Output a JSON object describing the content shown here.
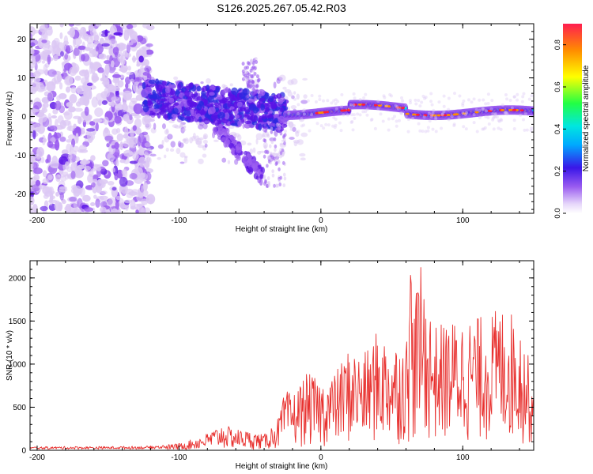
{
  "title": "S126.2025.267.05.42.R03",
  "colors": {
    "snr_line": "#e8312f",
    "spectrogram_palette": [
      "#ffffff",
      "#dcc8f4",
      "#9a5cf0",
      "#5a12e6",
      "#2a2ae0",
      "#00b8ff",
      "#00e8e0",
      "#22ff22",
      "#ffff00",
      "#ff8c00",
      "#ff1e3c"
    ]
  },
  "chart_data": [
    {
      "type": "heatmap",
      "name": "spectrogram",
      "xlabel": "Height of straight line (km)",
      "ylabel": "Frequency (Hz)",
      "xlim": [
        -205,
        150
      ],
      "ylim": [
        -25,
        24
      ],
      "xticks": [
        -200,
        -100,
        0,
        100
      ],
      "yticks": [
        -20,
        -10,
        0,
        10,
        20
      ],
      "colorbar": {
        "label": "Normalized spectral amplitude",
        "range": [
          0,
          0.9
        ],
        "ticks": [
          "0.0",
          "0.2",
          "0.4",
          "0.6",
          "0.8"
        ]
      },
      "description_points": [
        {
          "height_km": -200,
          "freq_hz": 0,
          "amplitude": 0.15
        },
        {
          "height_km": -120,
          "freq_hz": 5,
          "amplitude": 0.25
        },
        {
          "height_km": -90,
          "freq_hz": 2,
          "amplitude": 0.3
        },
        {
          "height_km": -60,
          "freq_hz": -10,
          "amplitude": 0.25
        },
        {
          "height_km": -50,
          "freq_hz": 12,
          "amplitude": 0.15
        },
        {
          "height_km": -20,
          "freq_hz": 0,
          "amplitude": 0.35
        },
        {
          "height_km": 10,
          "freq_hz": 1,
          "amplitude": 0.75
        },
        {
          "height_km": 50,
          "freq_hz": 3,
          "amplitude": 0.7
        },
        {
          "height_km": 100,
          "freq_hz": 2,
          "amplitude": 0.8
        },
        {
          "height_km": 140,
          "freq_hz": 1,
          "amplitude": 0.85
        }
      ]
    },
    {
      "type": "line",
      "name": "snr",
      "xlabel": "Height of straight line (km)",
      "ylabel": "SNR (10 * v/v)",
      "xlim": [
        -205,
        150
      ],
      "ylim": [
        0,
        2200
      ],
      "xticks": [
        -200,
        -100,
        0,
        100
      ],
      "yticks": [
        0,
        500,
        1000,
        1500,
        2000
      ],
      "envelope": {
        "x": [
          -205,
          -180,
          -150,
          -120,
          -100,
          -90,
          -80,
          -70,
          -60,
          -50,
          -40,
          -30,
          -25,
          -20,
          -10,
          0,
          10,
          20,
          30,
          40,
          50,
          60,
          70,
          80,
          90,
          100,
          110,
          120,
          130,
          140,
          150
        ],
        "y": [
          40,
          45,
          45,
          50,
          80,
          130,
          200,
          300,
          250,
          220,
          180,
          380,
          700,
          650,
          900,
          800,
          900,
          1200,
          1100,
          1400,
          1250,
          1300,
          2150,
          1450,
          1500,
          1550,
          1550,
          1600,
          1700,
          1500,
          850
        ]
      }
    }
  ]
}
